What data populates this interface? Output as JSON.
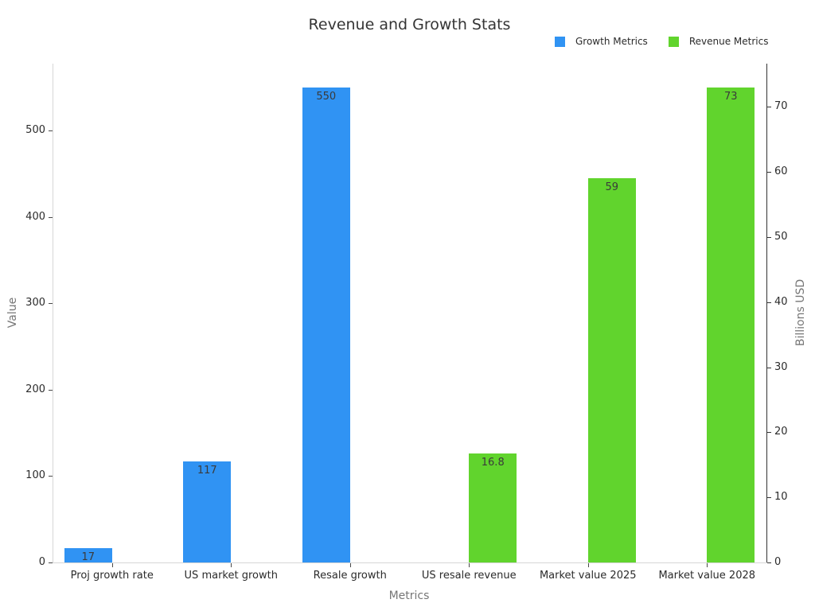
{
  "chart_data": {
    "type": "bar",
    "title": "Revenue and Growth Stats",
    "xlabel": "Metrics",
    "ylabel_left": "Value",
    "ylabel_right": "Billions USD",
    "legend_position": "top-right",
    "grid": false,
    "categories": [
      "Proj growth rate",
      "US market growth",
      "Resale growth",
      "US resale revenue",
      "Market value 2025",
      "Market value 2028"
    ],
    "series": [
      {
        "name": "Growth Metrics",
        "color": "#3093f3",
        "axis": "left",
        "values": [
          17,
          117,
          550,
          null,
          null,
          null
        ]
      },
      {
        "name": "Revenue Metrics",
        "color": "#61d42d",
        "axis": "right",
        "values": [
          null,
          null,
          null,
          16.8,
          59,
          73
        ]
      }
    ],
    "left_axis": {
      "ticks": [
        0,
        100,
        200,
        300,
        400,
        500
      ],
      "ylim": [
        0,
        577.5
      ]
    },
    "right_axis": {
      "ticks": [
        0,
        10,
        20,
        30,
        40,
        50,
        60,
        70
      ],
      "ylim": [
        0,
        76.65
      ]
    }
  }
}
